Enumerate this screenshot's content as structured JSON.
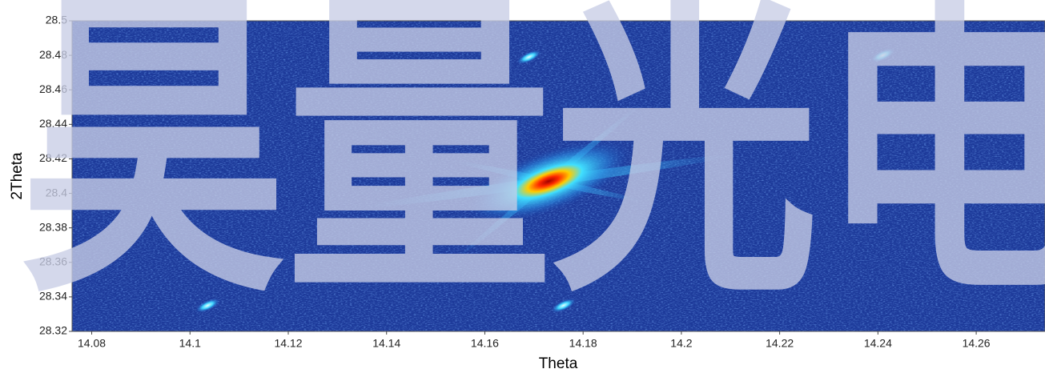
{
  "chart_data": {
    "type": "heatmap",
    "watermark": "昊量光电",
    "x_label": "Theta",
    "y_label": "2Theta",
    "x": [
      14.173,
      14.169,
      14.241,
      14.1036,
      14.176
    ],
    "values": [
      28.407,
      28.479,
      28.48,
      28.335,
      28.335
    ],
    "xlim": [
      14.076,
      14.274
    ],
    "ylim": [
      28.32,
      28.5
    ],
    "xticks": [
      14.08,
      14.1,
      14.12,
      14.14,
      14.16,
      14.18,
      14.2,
      14.22,
      14.24,
      14.26
    ],
    "yticks": [
      28.32,
      28.34,
      28.36,
      28.38,
      28.4,
      28.42,
      28.44,
      28.46,
      28.48,
      28.5
    ]
  }
}
